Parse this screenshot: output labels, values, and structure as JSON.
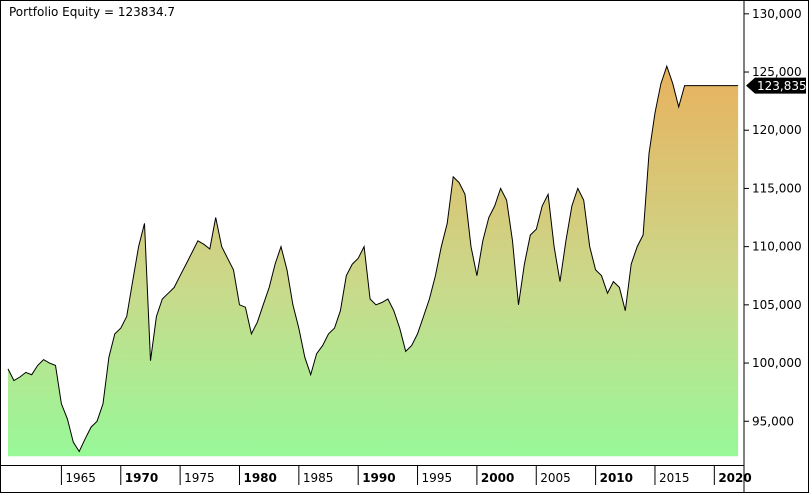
{
  "title_label": "Portfolio Equity",
  "title_value": "123834.7",
  "last_value_label": "123,835",
  "colors": {
    "fill_top": "#e8b25e",
    "fill_mid": "#cbd88a",
    "fill_bottom": "#98f898",
    "line": "#000000",
    "frame": "#000000",
    "badge_bg": "#000000",
    "badge_text": "#ffffff"
  },
  "chart_data": {
    "type": "area",
    "title": "Portfolio Equity = 123834.7",
    "xlabel": "",
    "ylabel": "",
    "xlim": [
      1960.5,
      2022.5
    ],
    "ylim": [
      91500,
      130500
    ],
    "baseline": 92000,
    "y_ticks": [
      95000,
      100000,
      105000,
      110000,
      115000,
      120000,
      125000,
      130000
    ],
    "y_tick_labels": [
      "95,000",
      "100,000",
      "105,000",
      "110,000",
      "115,000",
      "120,000",
      "125,000",
      "130,000"
    ],
    "x_ticks": [
      1965,
      1970,
      1975,
      1980,
      1985,
      1990,
      1995,
      2000,
      2005,
      2010,
      2015,
      2020
    ],
    "x_tick_labels": [
      "1965",
      "1970",
      "1975",
      "1980",
      "1985",
      "1990",
      "1995",
      "2000",
      "2005",
      "2010",
      "2015",
      "2020"
    ],
    "x_tick_bold": [
      false,
      true,
      false,
      true,
      false,
      true,
      false,
      true,
      false,
      true,
      false,
      true
    ],
    "grid": false,
    "series": [
      {
        "x": [
          1960.5,
          1961.0,
          1961.5,
          1962.0,
          1962.5,
          1963.0,
          1963.5,
          1964.0,
          1964.5,
          1965.0,
          1965.5,
          1966.0,
          1966.5,
          1967.0,
          1967.5,
          1968.0,
          1968.5,
          1969.0,
          1969.5,
          1970.0,
          1970.5,
          1971.0,
          1971.5,
          1972.0,
          1972.5,
          1973.0,
          1973.5,
          1974.0,
          1974.5,
          1975.0,
          1975.5,
          1976.0,
          1976.5,
          1977.0,
          1977.5,
          1978.0,
          1978.5,
          1979.0,
          1979.5,
          1980.0,
          1980.5,
          1981.0,
          1981.5,
          1982.0,
          1982.5,
          1983.0,
          1983.5,
          1984.0,
          1984.5,
          1985.0,
          1985.5,
          1986.0,
          1986.5,
          1987.0,
          1987.5,
          1988.0,
          1988.5,
          1989.0,
          1989.5,
          1990.0,
          1990.5,
          1991.0,
          1991.5,
          1992.0,
          1992.5,
          1993.0,
          1993.5,
          1994.0,
          1994.5,
          1995.0,
          1995.5,
          1996.0,
          1996.5,
          1997.0,
          1997.5,
          1998.0,
          1998.5,
          1999.0,
          1999.5,
          2000.0,
          2000.5,
          2001.0,
          2001.5,
          2002.0,
          2002.5,
          2003.0,
          2003.5,
          2004.0,
          2004.5,
          2005.0,
          2005.5,
          2006.0,
          2006.5,
          2007.0,
          2007.5,
          2008.0,
          2008.5,
          2009.0,
          2009.5,
          2010.0,
          2010.5,
          2011.0,
          2011.5,
          2012.0,
          2012.5,
          2013.0,
          2013.5,
          2014.0,
          2014.5,
          2015.0,
          2015.5,
          2016.0,
          2016.5,
          2017.0,
          2017.5,
          2018.0,
          2018.5,
          2019.0,
          2019.5,
          2020.0,
          2020.5,
          2021.0,
          2021.5,
          2022.0
        ],
        "y": [
          99500,
          98500,
          98800,
          99200,
          99000,
          99800,
          100300,
          100000,
          99800,
          96500,
          95200,
          93200,
          92400,
          93500,
          94500,
          95000,
          96500,
          100500,
          102500,
          103000,
          104000,
          107000,
          110000,
          112000,
          100200,
          104000,
          105500,
          106000,
          106500,
          107500,
          108500,
          109500,
          110500,
          110200,
          109800,
          112500,
          110000,
          109000,
          108000,
          105000,
          104800,
          102500,
          103500,
          105000,
          106500,
          108500,
          110000,
          108000,
          105000,
          103000,
          100500,
          99000,
          100800,
          101500,
          102500,
          103000,
          104500,
          107500,
          108500,
          109000,
          110000,
          105500,
          105000,
          105200,
          105500,
          104500,
          103000,
          101000,
          101500,
          102500,
          104000,
          105500,
          107500,
          110000,
          112000,
          116000,
          115500,
          114500,
          110000,
          107500,
          110500,
          112500,
          113500,
          115000,
          114000,
          110500,
          105000,
          108500,
          111000,
          111500,
          113500,
          114500,
          110000,
          107000,
          110500,
          113500,
          115000,
          114000,
          110000,
          108000,
          107500,
          106000,
          107000,
          106500,
          104500,
          108500,
          110000,
          111000,
          118000,
          121500,
          124000,
          125500,
          124000,
          122000,
          123834.7,
          123834.7,
          123834.7,
          123834.7,
          123834.7,
          123834.7,
          123834.7,
          123834.7,
          123834.7,
          123834.7
        ]
      }
    ],
    "last_value": 123834.7
  }
}
